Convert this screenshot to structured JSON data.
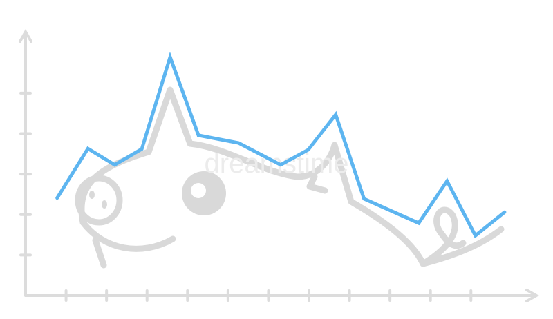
{
  "chart_data": {
    "type": "line",
    "watermark": "dreamstime",
    "x": [
      0.78,
      1.54,
      2.2,
      2.87,
      3.57,
      4.27,
      5.26,
      6.3,
      6.98,
      7.66,
      8.36,
      9.71,
      10.41,
      11.11,
      11.83
    ],
    "series": [
      {
        "color": "#5db5f0",
        "values": [
          2.41,
          3.63,
          3.23,
          3.62,
          5.89,
          3.96,
          3.77,
          3.23,
          3.6,
          4.47,
          2.39,
          1.79,
          2.83,
          1.48,
          2.06
        ]
      }
    ],
    "xlim": [
      0,
      12.6
    ],
    "ylim": [
      0,
      6.5
    ],
    "xticks": [
      1,
      2,
      3,
      4,
      5,
      6,
      7,
      8,
      9,
      10,
      11
    ],
    "yticks": [
      1,
      2,
      3,
      4,
      5
    ]
  }
}
